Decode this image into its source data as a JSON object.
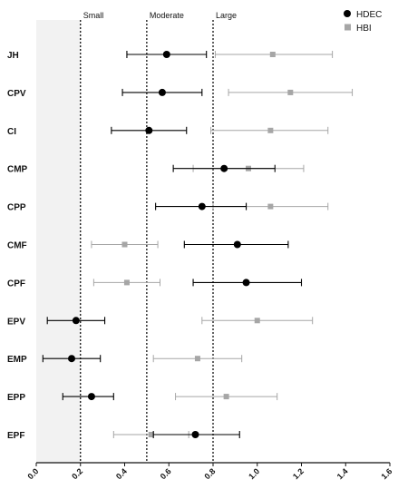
{
  "chart_data": {
    "type": "scatter",
    "title": "",
    "xlabel": "",
    "ylabel": "",
    "xlim": [
      0.0,
      1.6
    ],
    "x_ticks": [
      "0.0",
      "0.2",
      "0.4",
      "0.6",
      "0.8",
      "1.0",
      "1.2",
      "1.4",
      "1.6"
    ],
    "shaded_region": [
      0.0,
      0.2
    ],
    "thresholds": [
      {
        "label": "Small",
        "value": 0.2
      },
      {
        "label": "Moderate",
        "value": 0.5
      },
      {
        "label": "Large",
        "value": 0.8
      }
    ],
    "categories": [
      "JH",
      "CPV",
      "CI",
      "CMP",
      "CPP",
      "CMF",
      "CPF",
      "EPV",
      "EMP",
      "EPP",
      "EPF"
    ],
    "legend_position": "top-right",
    "series": [
      {
        "name": "HDEC",
        "color": "#000000",
        "marker": "circle",
        "points": [
          {
            "value": 0.59,
            "low": 0.41,
            "high": 0.77
          },
          {
            "value": 0.57,
            "low": 0.39,
            "high": 0.75
          },
          {
            "value": 0.51,
            "low": 0.34,
            "high": 0.68
          },
          {
            "value": 0.85,
            "low": 0.62,
            "high": 1.08
          },
          {
            "value": 0.75,
            "low": 0.54,
            "high": 0.95
          },
          {
            "value": 0.91,
            "low": 0.67,
            "high": 1.14
          },
          {
            "value": 0.95,
            "low": 0.71,
            "high": 1.2
          },
          {
            "value": 0.18,
            "low": 0.05,
            "high": 0.31
          },
          {
            "value": 0.16,
            "low": 0.03,
            "high": 0.29
          },
          {
            "value": 0.25,
            "low": 0.12,
            "high": 0.35
          },
          {
            "value": 0.72,
            "low": 0.53,
            "high": 0.92
          }
        ]
      },
      {
        "name": "HBI",
        "color": "#a6a6a6",
        "marker": "square",
        "points": [
          {
            "value": 1.07,
            "low": 0.81,
            "high": 1.34
          },
          {
            "value": 1.15,
            "low": 0.87,
            "high": 1.43
          },
          {
            "value": 1.06,
            "low": 0.79,
            "high": 1.32
          },
          {
            "value": 0.96,
            "low": 0.71,
            "high": 1.21
          },
          {
            "value": 1.06,
            "low": 0.8,
            "high": 1.32
          },
          {
            "value": 0.4,
            "low": 0.25,
            "high": 0.55
          },
          {
            "value": 0.41,
            "low": 0.26,
            "high": 0.56
          },
          {
            "value": 1.0,
            "low": 0.75,
            "high": 1.25
          },
          {
            "value": 0.73,
            "low": 0.53,
            "high": 0.93
          },
          {
            "value": 0.86,
            "low": 0.63,
            "high": 1.09
          },
          {
            "value": 0.52,
            "low": 0.35,
            "high": 0.69
          }
        ]
      }
    ]
  }
}
